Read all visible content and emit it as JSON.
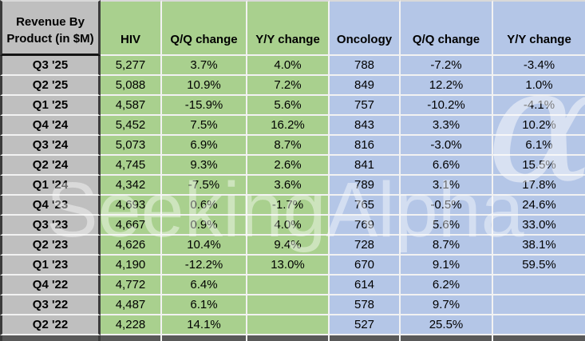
{
  "chart_data": {
    "type": "table",
    "title": "Revenue By Product (in $M)",
    "title_line1": "Revenue By",
    "title_line2": "Product (in $M)",
    "columns": [
      "HIV",
      "Q/Q change",
      "Y/Y change",
      "Oncology",
      "Q/Q change",
      "Y/Y change"
    ],
    "rows": [
      {
        "quarter": "Q3 '25",
        "hiv": "5,277",
        "hiv_qq": "3.7%",
        "hiv_yy": "4.0%",
        "oncology": "788",
        "onc_qq": "-7.2%",
        "onc_yy": "-3.4%"
      },
      {
        "quarter": "Q2 '25",
        "hiv": "5,088",
        "hiv_qq": "10.9%",
        "hiv_yy": "7.2%",
        "oncology": "849",
        "onc_qq": "12.2%",
        "onc_yy": "1.0%"
      },
      {
        "quarter": "Q1 '25",
        "hiv": "4,587",
        "hiv_qq": "-15.9%",
        "hiv_yy": "5.6%",
        "oncology": "757",
        "onc_qq": "-10.2%",
        "onc_yy": "-4.1%"
      },
      {
        "quarter": "Q4 '24",
        "hiv": "5,452",
        "hiv_qq": "7.5%",
        "hiv_yy": "16.2%",
        "oncology": "843",
        "onc_qq": "3.3%",
        "onc_yy": "10.2%"
      },
      {
        "quarter": "Q3 '24",
        "hiv": "5,073",
        "hiv_qq": "6.9%",
        "hiv_yy": "8.7%",
        "oncology": "816",
        "onc_qq": "-3.0%",
        "onc_yy": "6.1%"
      },
      {
        "quarter": "Q2 '24",
        "hiv": "4,745",
        "hiv_qq": "9.3%",
        "hiv_yy": "2.6%",
        "oncology": "841",
        "onc_qq": "6.6%",
        "onc_yy": "15.5%"
      },
      {
        "quarter": "Q1 '24",
        "hiv": "4,342",
        "hiv_qq": "-7.5%",
        "hiv_yy": "3.6%",
        "oncology": "789",
        "onc_qq": "3.1%",
        "onc_yy": "17.8%"
      },
      {
        "quarter": "Q4 '23",
        "hiv": "4,693",
        "hiv_qq": "0.6%",
        "hiv_yy": "-1.7%",
        "oncology": "765",
        "onc_qq": "-0.5%",
        "onc_yy": "24.6%"
      },
      {
        "quarter": "Q3 '23",
        "hiv": "4,667",
        "hiv_qq": "0.9%",
        "hiv_yy": "4.0%",
        "oncology": "769",
        "onc_qq": "5.6%",
        "onc_yy": "33.0%"
      },
      {
        "quarter": "Q2 '23",
        "hiv": "4,626",
        "hiv_qq": "10.4%",
        "hiv_yy": "9.4%",
        "oncology": "728",
        "onc_qq": "8.7%",
        "onc_yy": "38.1%"
      },
      {
        "quarter": "Q1 '23",
        "hiv": "4,190",
        "hiv_qq": "-12.2%",
        "hiv_yy": "13.0%",
        "oncology": "670",
        "onc_qq": "9.1%",
        "onc_yy": "59.5%"
      },
      {
        "quarter": "Q4 '22",
        "hiv": "4,772",
        "hiv_qq": "6.4%",
        "hiv_yy": "",
        "oncology": "614",
        "onc_qq": "6.2%",
        "onc_yy": ""
      },
      {
        "quarter": "Q3 '22",
        "hiv": "4,487",
        "hiv_qq": "6.1%",
        "hiv_yy": "",
        "oncology": "578",
        "onc_qq": "9.7%",
        "onc_yy": ""
      },
      {
        "quarter": "Q2 '22",
        "hiv": "4,228",
        "hiv_qq": "14.1%",
        "hiv_yy": "",
        "oncology": "527",
        "onc_qq": "25.5%",
        "onc_yy": ""
      }
    ]
  },
  "watermark": {
    "text": "SeekingAlpha",
    "alpha_symbol": "α"
  },
  "colors": {
    "hiv_section_green": "#a9d08e",
    "oncology_section_blue": "#b4c6e7",
    "label_column_gray": "#bfbfbf",
    "grid_line": "#f2f2f2",
    "dark_border": "#3b3b3b",
    "bottom_strip": "#595959"
  }
}
